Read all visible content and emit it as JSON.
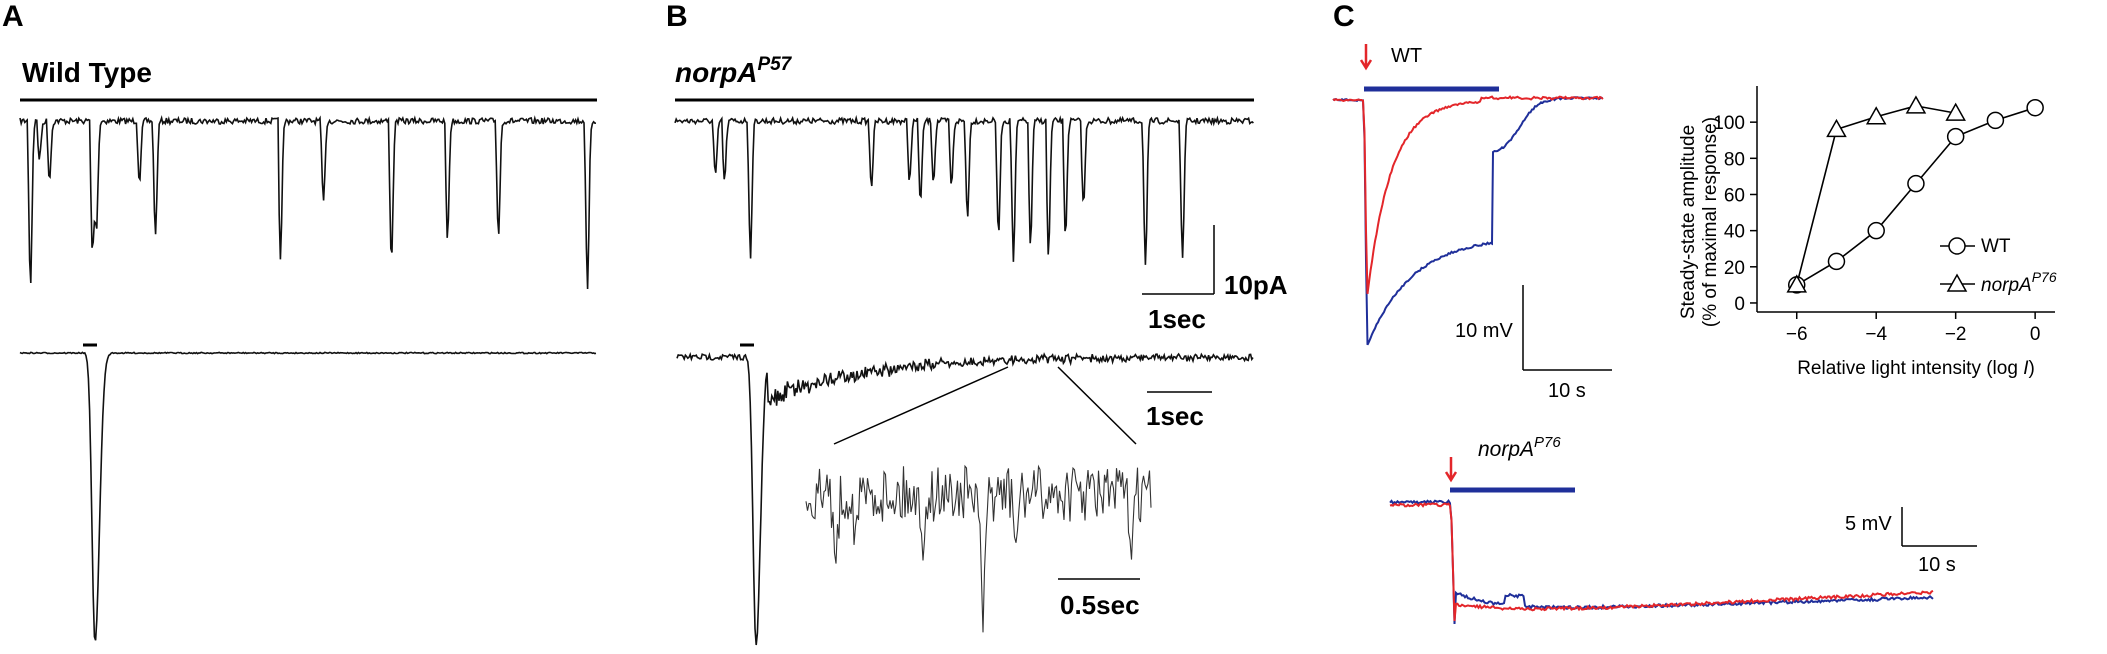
{
  "panels": {
    "A": {
      "letter": "A",
      "title": "Wild Type"
    },
    "B": {
      "letter": "B",
      "title_main": "norpA",
      "title_sup": "P57"
    },
    "C": {
      "letter": "C"
    }
  },
  "scale_bars": {
    "B_current": "10pA",
    "B_time_top": "1sec",
    "B_time_mid": "1sec",
    "B_time_inset": "0.5sec",
    "C_wt_voltage": "10 mV",
    "C_wt_time": "10 s",
    "C_mut_voltage": "5 mV",
    "C_mut_time": "10 s"
  },
  "trace_labels": {
    "wt": "WT",
    "mut_main": "norpA",
    "mut_sup": "P76"
  },
  "colors": {
    "trace": "#111111",
    "red_trace": "#e3262a",
    "blue_trace": "#1f2f9a",
    "stimulus_bar": "#1f2f9a",
    "arrow": "#e3262a"
  },
  "chart_data": [
    {
      "type": "line",
      "panel": "C",
      "xlabel": "Relative light intensity (log I)",
      "xlabel_main": "Relative light intensity (log ",
      "xlabel_var": "I",
      "xlabel_close": ")",
      "ylabel_line1": "Steady-state amplitude",
      "ylabel_line2": "(% of maximal response)",
      "xlim": [
        -7,
        0.5
      ],
      "ylim": [
        -5,
        120
      ],
      "xticks": [
        -6,
        -4,
        -2,
        0
      ],
      "xtick_labels": [
        "−6",
        "−4",
        "−2",
        "0"
      ],
      "yticks": [
        0,
        20,
        40,
        60,
        80,
        100
      ],
      "ytick_labels": [
        "0",
        "20",
        "40",
        "60",
        "80",
        "100"
      ],
      "legend_position": "right",
      "series": [
        {
          "name": "WT",
          "marker": "circle",
          "x": [
            -6,
            -5,
            -4,
            -3,
            -2,
            -1,
            0
          ],
          "y": [
            10,
            23,
            40,
            66,
            92,
            101,
            108
          ]
        },
        {
          "name": "norpA P76",
          "name_main": "norpA",
          "name_sup": "P76",
          "marker": "triangle",
          "x": [
            -6,
            -5,
            -4,
            -3,
            -2
          ],
          "y": [
            10,
            96,
            103,
            109,
            105
          ]
        }
      ]
    }
  ]
}
